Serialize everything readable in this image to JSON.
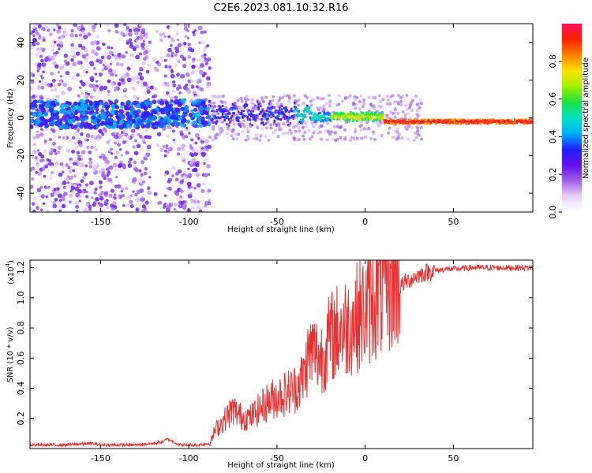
{
  "title": "C2E6.2023.081.10.32.R16",
  "chart_data": [
    {
      "type": "heatmap",
      "xlabel": "Height of straight line (km)",
      "ylabel": "Frequency (Hz)",
      "xlim": [
        -190,
        95
      ],
      "ylim": [
        -50,
        50
      ],
      "xticks": [
        -150,
        -100,
        -50,
        0,
        50
      ],
      "yticks": [
        -40,
        -20,
        0,
        20,
        40
      ],
      "colorbar": {
        "label": "Normalized spectral amplitude",
        "range": [
          0.0,
          1.0
        ],
        "ticks": [
          "0.0",
          "0.2",
          "0.4",
          "0.6",
          "0.8"
        ],
        "colormap": [
          "#ffffff",
          "#e8d0f8",
          "#a060e8",
          "#6010f0",
          "#2020ff",
          "#00b0ff",
          "#00e0c0",
          "#20e040",
          "#a0f000",
          "#ffe000",
          "#ff8000",
          "#ff2000",
          "#ff1060"
        ]
      },
      "description_segments": [
        {
          "x_range": [
            -190,
            -88
          ],
          "freq_center": 2,
          "pattern": "scattered broadband noise, low amplitude (0.1-0.4)"
        },
        {
          "x_range": [
            -88,
            -40
          ],
          "freq_center": 2,
          "pattern": "narrow band, amplitude 0.4-0.6"
        },
        {
          "x_range": [
            -40,
            10
          ],
          "freq_center": 0,
          "pattern": "narrowing band, amplitude 0.6-0.9"
        },
        {
          "x_range": [
            10,
            95
          ],
          "freq_center": -2,
          "pattern": "very narrow line, amplitude ~1.0"
        }
      ]
    },
    {
      "type": "line",
      "xlabel": "Height of straight line (km)",
      "ylabel": "SNR (10 * v/v)",
      "yscale_label": "(x10",
      "yscale_exp": "4",
      "ylabel_suffix": ")",
      "xlim": [
        -190,
        95
      ],
      "ylim": [
        0,
        1.25
      ],
      "xticks": [
        -150,
        -100,
        -50,
        0,
        50
      ],
      "yticks": [
        "0.2",
        "0.4",
        "0.6",
        "0.8",
        "1.0",
        "1.2"
      ],
      "color": "#e83030",
      "series": [
        {
          "x": [
            -190,
            -170,
            -155,
            -150,
            -130,
            -120,
            -115,
            -112,
            -105,
            -95,
            -88,
            -85,
            -80,
            -75,
            -70,
            -65,
            -60,
            -55,
            -50,
            -45,
            -40,
            -35,
            -32,
            -30,
            -25,
            -20,
            -15,
            -10,
            -5,
            0,
            5,
            10,
            15,
            20,
            25,
            30,
            35,
            40,
            45,
            50,
            60,
            70,
            80,
            95
          ],
          "values": [
            0.02,
            0.02,
            0.03,
            0.02,
            0.02,
            0.03,
            0.04,
            0.06,
            0.02,
            0.02,
            0.03,
            0.12,
            0.18,
            0.25,
            0.2,
            0.2,
            0.25,
            0.3,
            0.33,
            0.35,
            0.38,
            0.45,
            0.6,
            0.62,
            0.58,
            0.7,
            0.75,
            0.78,
            0.83,
            0.88,
            0.95,
            1.0,
            1.05,
            1.08,
            1.12,
            1.15,
            1.17,
            1.18,
            1.19,
            1.19,
            1.2,
            1.2,
            1.2,
            1.2
          ]
        }
      ]
    }
  ]
}
